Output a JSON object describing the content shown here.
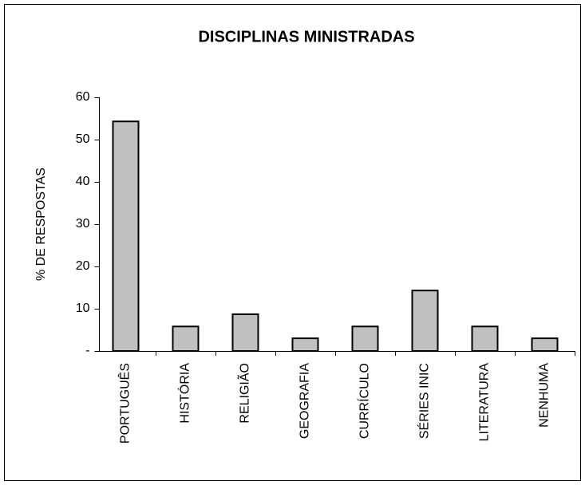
{
  "chart_data": {
    "type": "bar",
    "title": "DISCIPLINAS MINISTRADAS",
    "y_label": "% DE RESPOSTAS",
    "categories": [
      "PORTUGUÊS",
      "HISTÓRIA",
      "RELIGIÃO",
      "GEOGRAFIA",
      "CURRÍCULO",
      "SÉRIES INIC",
      "LITERATURA",
      "NENHUMA"
    ],
    "values": [
      54.3,
      5.8,
      8.7,
      3.0,
      5.8,
      14.3,
      5.8,
      3.0
    ],
    "color": "#c0c0c0",
    "ylim": [
      0,
      60
    ],
    "yticks": [
      {
        "value": 0,
        "label": "-"
      },
      10,
      20,
      30,
      40,
      50,
      60
    ],
    "grid": false
  }
}
